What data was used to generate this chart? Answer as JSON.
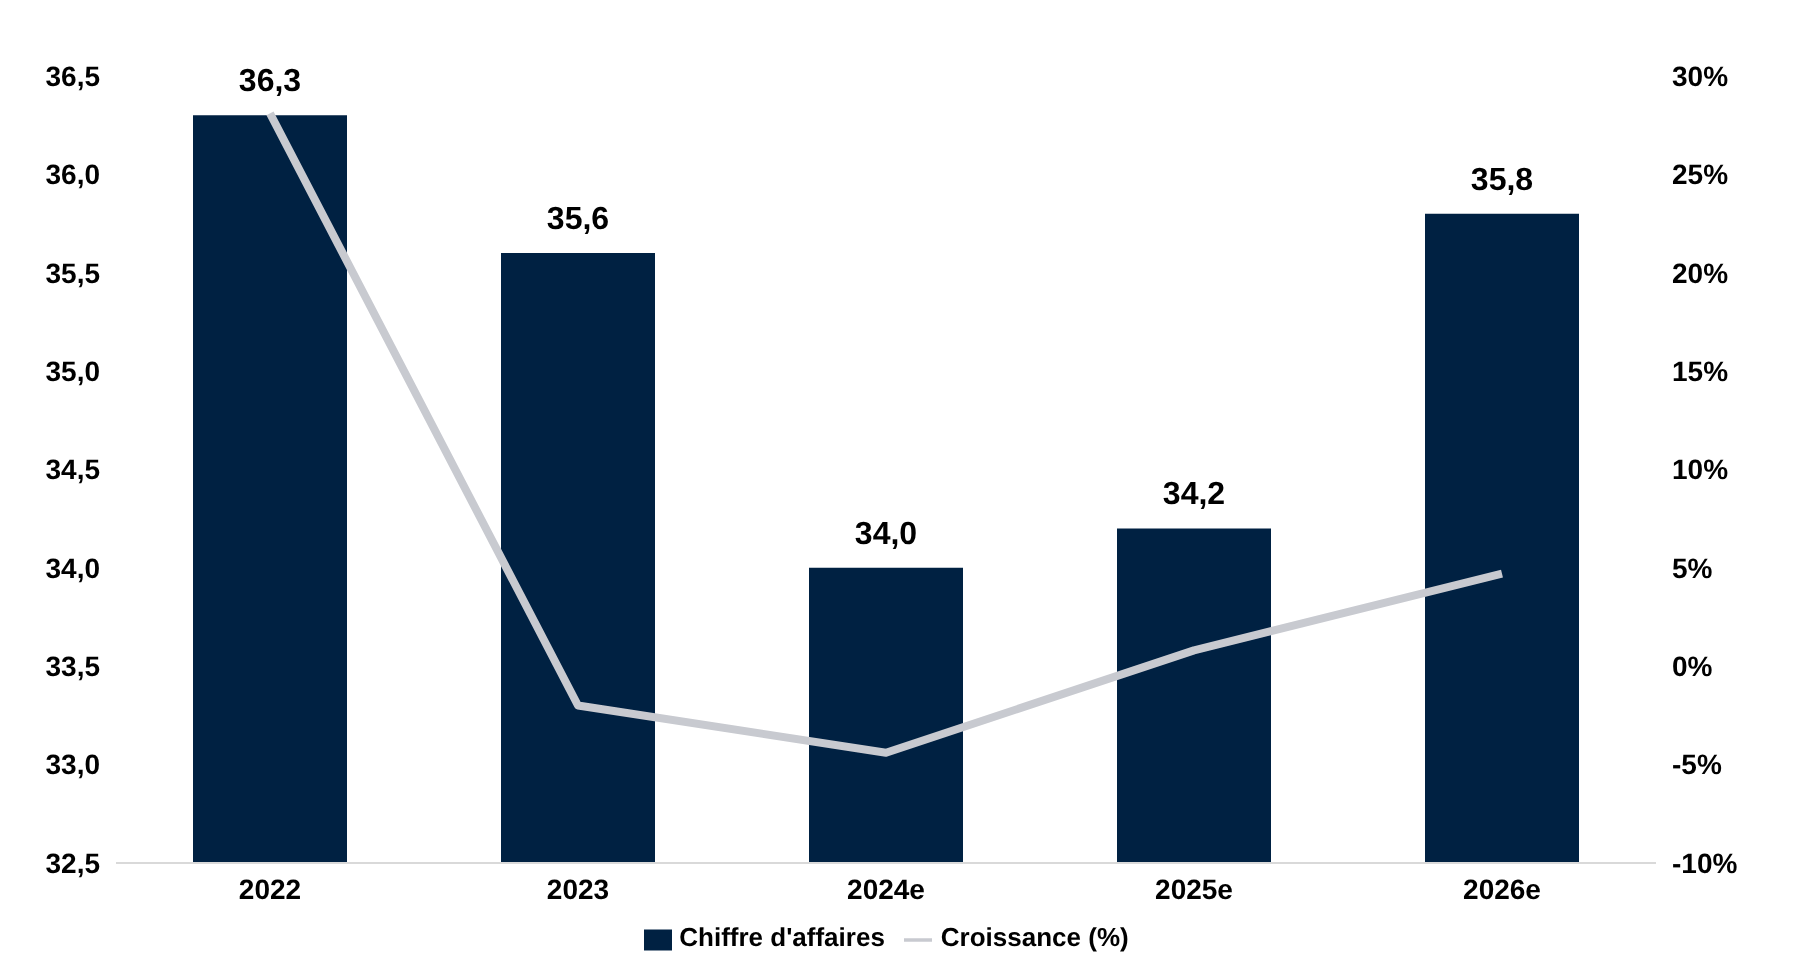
{
  "chart_data": {
    "type": "bar",
    "categories": [
      "2022",
      "2023",
      "2024e",
      "2025e",
      "2026e"
    ],
    "series": [
      {
        "name": "Chiffre d'affaires",
        "color": "#002142",
        "values": [
          36.3,
          35.6,
          34.0,
          34.2,
          35.8
        ],
        "value_labels": [
          "36,3",
          "35,6",
          "34,0",
          "34,2",
          "35,8"
        ]
      },
      {
        "name": "Croissance (%)",
        "type": "line",
        "axis": "y2",
        "color": "#c8cad0",
        "values": [
          28.1,
          -2.0,
          -4.4,
          0.8,
          4.7
        ]
      }
    ],
    "ylim": [
      32.5,
      36.5
    ],
    "yticks": [
      {
        "value": 32.5,
        "label": "32,5"
      },
      {
        "value": 33,
        "label": "33,0"
      },
      {
        "value": 33.5,
        "label": "33,5"
      },
      {
        "value": 34,
        "label": "34,0"
      },
      {
        "value": 34.5,
        "label": "34,5"
      },
      {
        "value": 35,
        "label": "35,0"
      },
      {
        "value": 35.5,
        "label": "35,5"
      },
      {
        "value": 36,
        "label": "36,0"
      },
      {
        "value": 36.5,
        "label": "36,5"
      }
    ],
    "y2lim": [
      -10,
      30
    ],
    "y2ticks": [
      {
        "value": -10,
        "label": "-10%"
      },
      {
        "value": -5,
        "label": "-5%"
      },
      {
        "value": 0,
        "label": "0%"
      },
      {
        "value": 5,
        "label": "5%"
      },
      {
        "value": 10,
        "label": "10%"
      },
      {
        "value": 15,
        "label": "15%"
      },
      {
        "value": 20,
        "label": "20%"
      },
      {
        "value": 25,
        "label": "25%"
      },
      {
        "value": 30,
        "label": "30%"
      }
    ],
    "grid": false,
    "legend": "bottom",
    "marker": "none",
    "line_style": "solid"
  }
}
